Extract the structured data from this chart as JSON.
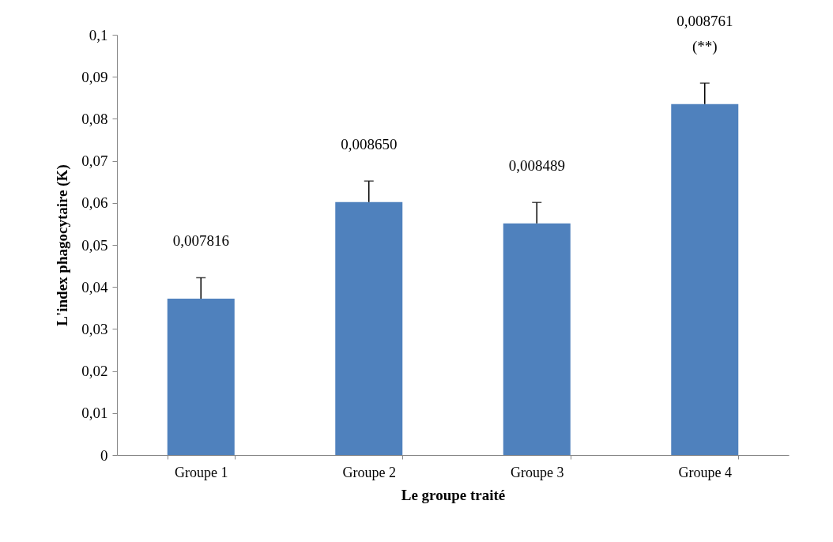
{
  "chart_data": {
    "type": "bar",
    "xlabel": "Le groupe traité",
    "ylabel": "L'index phagocytaire (K)",
    "categories": [
      "Groupe 1",
      "Groupe 2",
      "Groupe 3",
      "Groupe 4"
    ],
    "values": [
      0.0372,
      0.0602,
      0.0551,
      0.0835
    ],
    "color": "#4f81bd",
    "errors": [
      [
        0.0372,
        0.0422
      ],
      [
        0.0602,
        0.0652
      ],
      [
        0.0551,
        0.0601
      ],
      [
        0.0835,
        0.0885
      ]
    ],
    "ylim": [
      0,
      0.1
    ],
    "yticks": [
      0,
      {
        "value": 0.01,
        "label": "0,01"
      },
      {
        "value": 0.02,
        "label": "0,02"
      },
      {
        "value": 0.03,
        "label": "0,03"
      },
      {
        "value": 0.04,
        "label": "0,04"
      },
      {
        "value": 0.05,
        "label": "0,05"
      },
      {
        "value": 0.06,
        "label": "0,06"
      },
      {
        "value": 0.07,
        "label": "0,07"
      },
      {
        "value": 0.08,
        "label": "0,08"
      },
      {
        "value": 0.09,
        "label": "0,09"
      },
      {
        "value": 0.1,
        "label": "0,1"
      }
    ],
    "annotations": [
      "0,007816",
      "0,008650",
      "0,008489",
      "0,008761",
      "(**)"
    ],
    "grid": false
  }
}
